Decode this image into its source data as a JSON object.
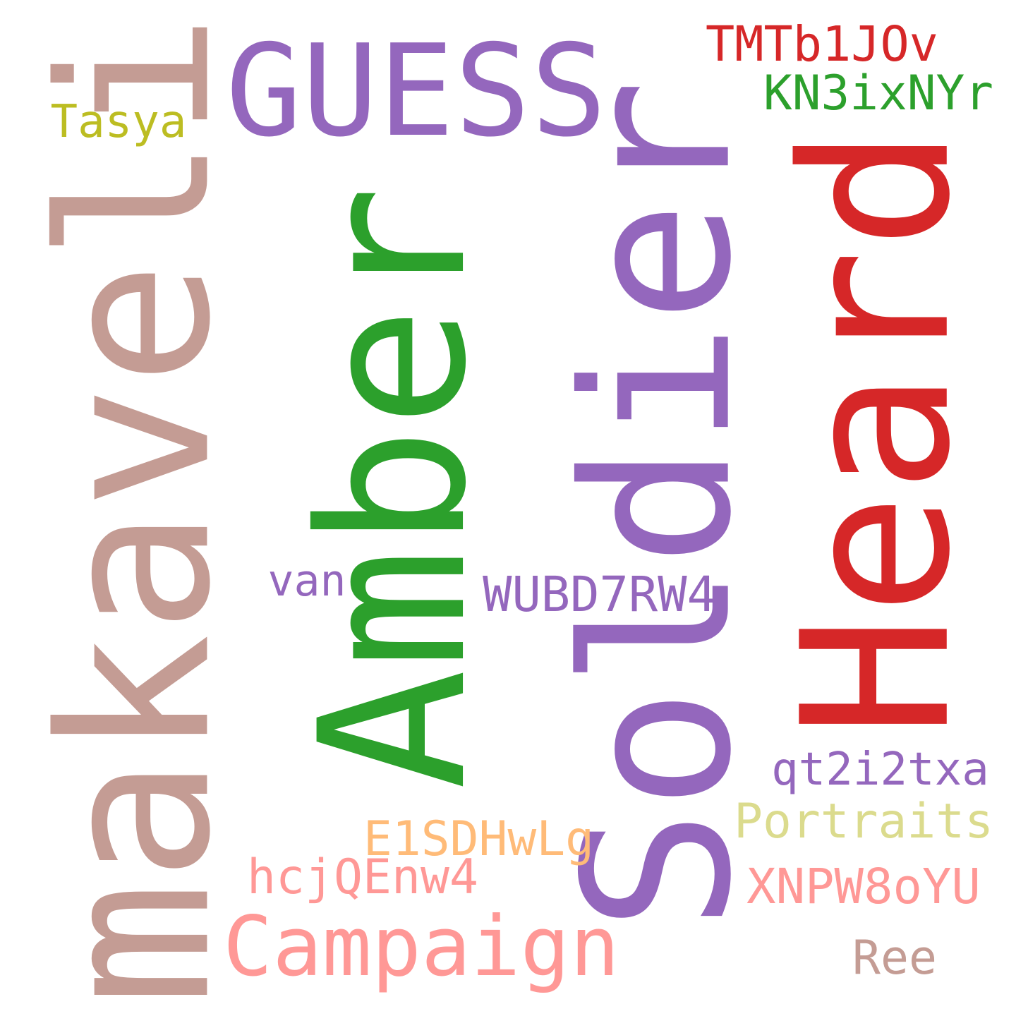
{
  "words": [
    {
      "text": "makaveli",
      "color": "#c49c94",
      "orientation": "vertical"
    },
    {
      "text": "Amber",
      "color": "#2ca02c",
      "orientation": "vertical"
    },
    {
      "text": "Soldier",
      "color": "#9467bd",
      "orientation": "vertical"
    },
    {
      "text": "Heard",
      "color": "#d62728",
      "orientation": "vertical"
    },
    {
      "text": "GUESS",
      "color": "#9467bd",
      "orientation": "horizontal"
    },
    {
      "text": "TMTb1JOv",
      "color": "#d62728",
      "orientation": "horizontal"
    },
    {
      "text": "KN3ixNYr",
      "color": "#2ca02c",
      "orientation": "horizontal"
    },
    {
      "text": "Tasya",
      "color": "#bcbd22",
      "orientation": "horizontal"
    },
    {
      "text": "van",
      "color": "#9467bd",
      "orientation": "horizontal"
    },
    {
      "text": "WUBD7RW4",
      "color": "#9467bd",
      "orientation": "horizontal"
    },
    {
      "text": "qt2i2txa",
      "color": "#9467bd",
      "orientation": "horizontal"
    },
    {
      "text": "Portraits",
      "color": "#dbdb8d",
      "orientation": "horizontal"
    },
    {
      "text": "E1SDHwLg",
      "color": "#ffbb78",
      "orientation": "horizontal"
    },
    {
      "text": "hcjQEnw4",
      "color": "#ff9896",
      "orientation": "horizontal"
    },
    {
      "text": "XNPW8oYU",
      "color": "#ff9896",
      "orientation": "horizontal"
    },
    {
      "text": "Campaign",
      "color": "#ff9896",
      "orientation": "horizontal"
    },
    {
      "text": "Ree",
      "color": "#c49c94",
      "orientation": "horizontal"
    }
  ]
}
